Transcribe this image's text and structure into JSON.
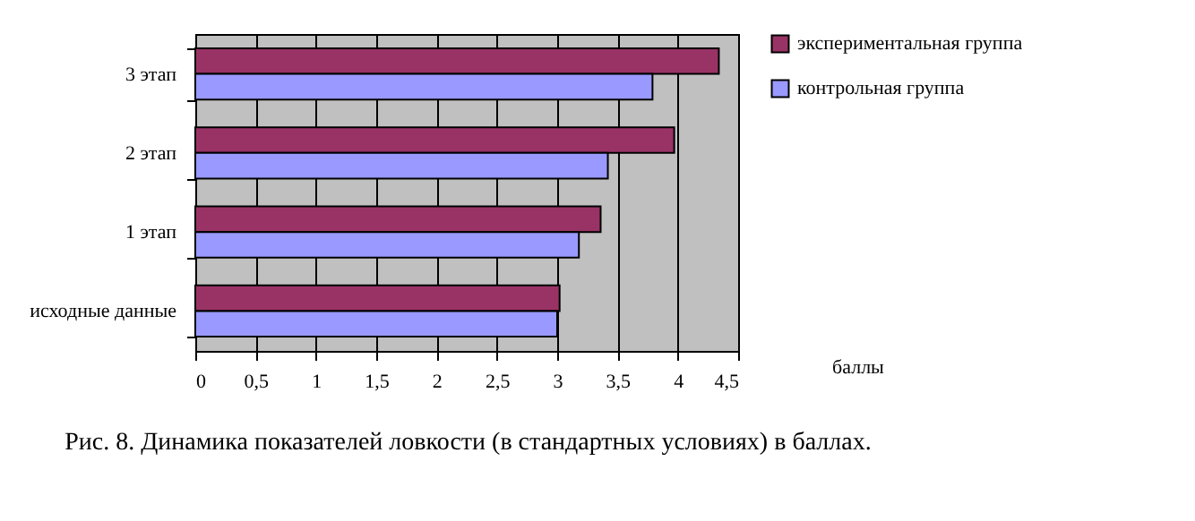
{
  "chart_data": {
    "type": "bar",
    "orientation": "horizontal",
    "categories": [
      "3 этап",
      "2 этап",
      "1 этап",
      "исходные данные"
    ],
    "series": [
      {
        "name": "экспериментальная группа",
        "color": "#993366",
        "values": [
          4.34,
          3.97,
          3.36,
          3.02
        ]
      },
      {
        "name": "контрольная группа",
        "color": "#9999ff",
        "values": [
          3.79,
          3.42,
          3.18,
          3.0
        ]
      }
    ],
    "xlim": [
      0,
      4.5
    ],
    "xticks": [
      {
        "value": 0,
        "label": "0"
      },
      {
        "value": 0.5,
        "label": "0,5"
      },
      {
        "value": 1,
        "label": "1"
      },
      {
        "value": 1.5,
        "label": "1,5"
      },
      {
        "value": 2,
        "label": "2"
      },
      {
        "value": 2.5,
        "label": "2,5"
      },
      {
        "value": 3,
        "label": "3"
      },
      {
        "value": 3.5,
        "label": "3,5"
      },
      {
        "value": 4,
        "label": "4"
      },
      {
        "value": 4.5,
        "label": "4,5"
      }
    ],
    "xlabel": "баллы",
    "grid": "x",
    "legend": "right",
    "annotations": [
      "Рис. 8. Динамика показателей ловкости (в стандартных условиях) в баллах."
    ]
  }
}
